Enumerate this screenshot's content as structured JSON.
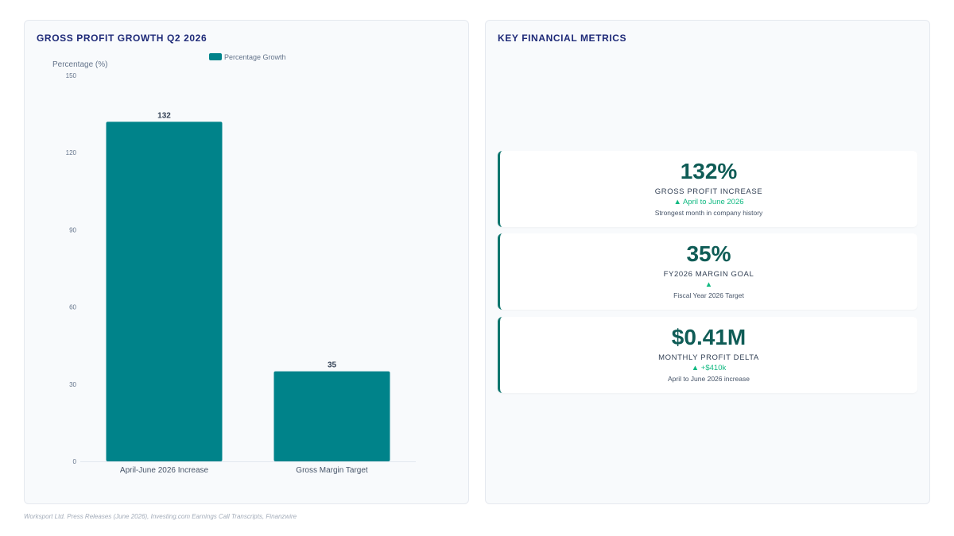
{
  "chart_panel": {
    "title": "GROSS PROFIT GROWTH Q2 2026"
  },
  "chart_data": {
    "type": "bar",
    "title": "GROSS PROFIT GROWTH Q2 2026",
    "ylabel": "Percentage (%)",
    "xlabel": "",
    "categories": [
      "April-June 2026 Increase",
      "Gross Margin Target"
    ],
    "series": [
      {
        "name": "Percentage Growth",
        "values": [
          132,
          35
        ],
        "color": "#00838a"
      }
    ],
    "ylim": [
      0,
      150
    ],
    "yticks": [
      0,
      30,
      60,
      90,
      120,
      150
    ],
    "legend": "top-center",
    "grid": false
  },
  "metrics_panel": {
    "title": "KEY FINANCIAL METRICS",
    "cards": [
      {
        "value": "132%",
        "label": "GROSS PROFIT INCREASE",
        "delta": "▲ April to June 2026",
        "note": "Strongest month in company history"
      },
      {
        "value": "35%",
        "label": "FY2026 MARGIN GOAL",
        "delta": "▲",
        "note": "Fiscal Year 2026 Target"
      },
      {
        "value": "$0.41M",
        "label": "MONTHLY PROFIT DELTA",
        "delta": "▲ +$410k",
        "note": "April to June 2026 increase"
      }
    ]
  },
  "footer": {
    "source": "Worksport Ltd. Press Releases (June 2026), Investing.com Earnings Call Transcripts, Finanzwire"
  }
}
